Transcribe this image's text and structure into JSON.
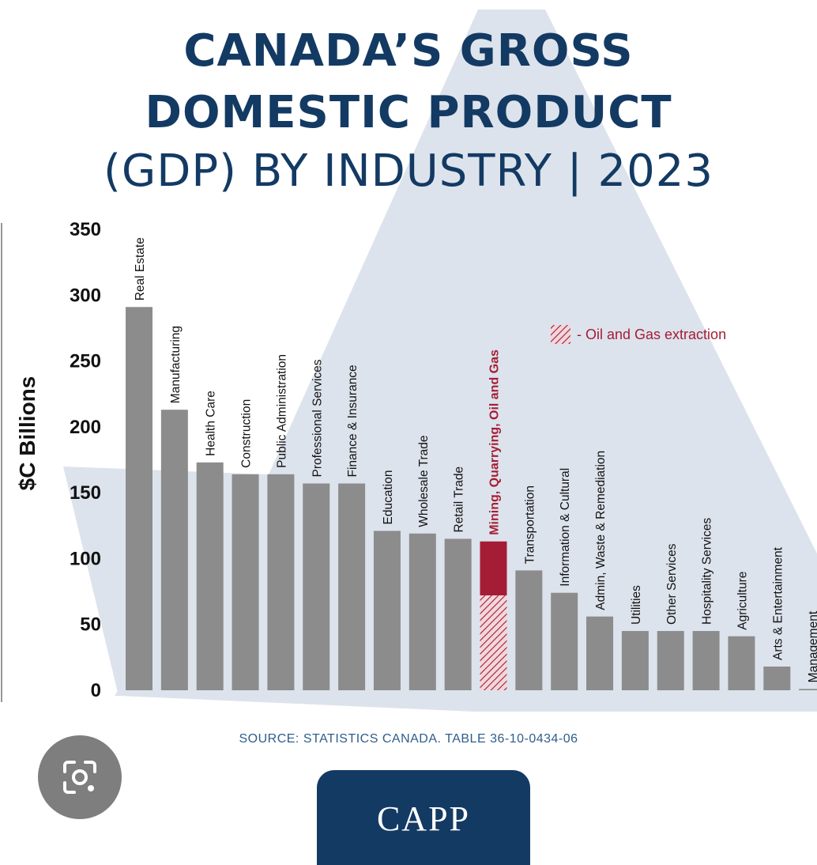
{
  "title_line1": "CANADA’S GROSS",
  "title_line2": "DOMESTIC PRODUCT",
  "title_line3": "(GDP) BY INDUSTRY | 2023",
  "source": "SOURCE: STATISTICS CANADA. TABLE 36-10-0434-06",
  "logo": "CAPP",
  "colors": {
    "bar": "#8c8c8c",
    "highlight": "#a51d35",
    "title": "#133a63",
    "leaf": "#dde3ec"
  },
  "lens_icon": "google-lens-icon",
  "chart_data": {
    "type": "bar",
    "ylabel": "$C Billions",
    "ylim": [
      0,
      350
    ],
    "yticks": [
      0,
      50,
      100,
      150,
      200,
      250,
      300,
      350
    ],
    "categories": [
      "Real Estate",
      "Manufacturing",
      "Health Care",
      "Construction",
      "Public Administration",
      "Professional Services",
      "Finance & Insurance",
      "Education",
      "Wholesale Trade",
      "Retail Trade",
      "Mining, Quarrying, Oil and Gas",
      "Transportation",
      "Information & Cultural",
      "Admin, Waste & Remediation",
      "Utilities",
      "Other Services",
      "Hospitality Services",
      "Agriculture",
      "Arts & Entertainment",
      "Management"
    ],
    "values": [
      291,
      213,
      173,
      164,
      164,
      157,
      157,
      121,
      119,
      115,
      113,
      91,
      74,
      56,
      45,
      45,
      45,
      41,
      18,
      1
    ],
    "highlight_category": "Mining, Quarrying, Oil and Gas",
    "oil_gas_extraction_value": 72,
    "legend_label": "- Oil and Gas extraction",
    "legend_position": "top-right",
    "grid": false
  }
}
